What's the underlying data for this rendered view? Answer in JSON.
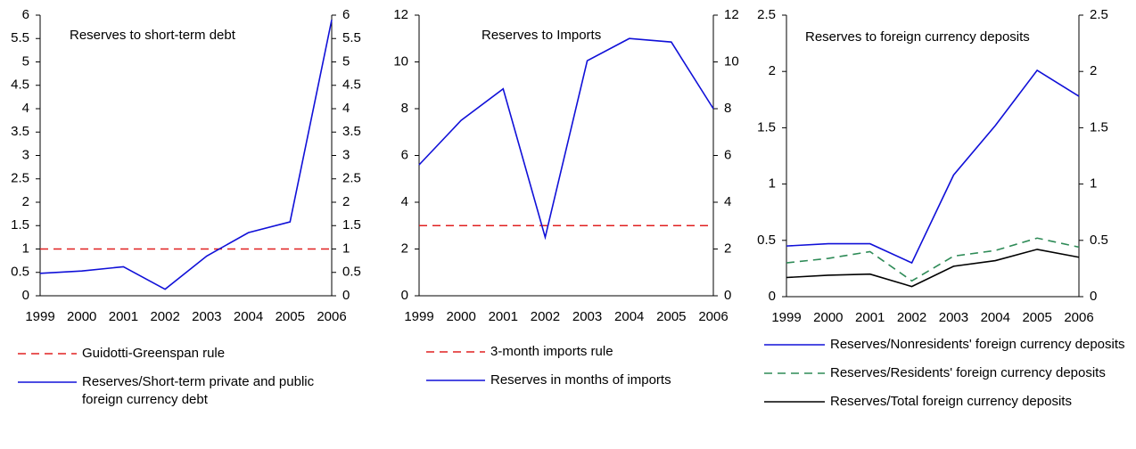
{
  "chart_data": [
    {
      "type": "line",
      "title": "Reserves to short-term debt",
      "categories": [
        "1999",
        "2000",
        "2001",
        "2002",
        "2003",
        "2004",
        "2005",
        "2006"
      ],
      "series": [
        {
          "name": "Guidotti-Greenspan rule",
          "color": "#e02020",
          "style": "dashed",
          "values": [
            1,
            1,
            1,
            1,
            1,
            1,
            1,
            1
          ]
        },
        {
          "name": "Reserves/Short-term private and public foreign currency debt",
          "color": "#1010d8",
          "style": "solid",
          "values": [
            0.48,
            0.53,
            0.62,
            0.14,
            0.85,
            1.35,
            1.58,
            5.9
          ]
        }
      ],
      "ylim": [
        0,
        6
      ],
      "yticks": [
        0,
        0.5,
        1,
        1.5,
        2,
        2.5,
        3,
        3.5,
        4,
        4.5,
        5,
        5.5,
        6
      ],
      "y2lim": [
        0,
        6
      ],
      "y2ticks": [
        0,
        0.5,
        1,
        1.5,
        2,
        2.5,
        3,
        3.5,
        4,
        4.5,
        5,
        5.5,
        6
      ]
    },
    {
      "type": "line",
      "title": "Reserves to Imports",
      "categories": [
        "1999",
        "2000",
        "2001",
        "2002",
        "2003",
        "2004",
        "2005",
        "2006"
      ],
      "series": [
        {
          "name": "3-month imports rule",
          "color": "#e02020",
          "style": "dashed",
          "values": [
            3,
            3,
            3,
            3,
            3,
            3,
            3,
            3
          ]
        },
        {
          "name": "Reserves in months of imports",
          "color": "#1010d8",
          "style": "solid",
          "values": [
            5.6,
            7.5,
            8.85,
            2.5,
            10.05,
            11.0,
            10.85,
            8.0
          ]
        }
      ],
      "ylim": [
        0,
        12
      ],
      "yticks": [
        0,
        2,
        4,
        6,
        8,
        10,
        12
      ],
      "y2lim": [
        0,
        12
      ],
      "y2ticks": [
        0,
        2,
        4,
        6,
        8,
        10,
        12
      ]
    },
    {
      "type": "line",
      "title": "Reserves to foreign currency deposits",
      "categories": [
        "1999",
        "2000",
        "2001",
        "2002",
        "2003",
        "2004",
        "2005",
        "2006"
      ],
      "series": [
        {
          "name": "Reserves/Nonresidents' foreign currency deposits",
          "color": "#1010d8",
          "style": "solid",
          "values": [
            0.45,
            0.47,
            0.47,
            0.3,
            1.08,
            1.52,
            2.01,
            1.78
          ]
        },
        {
          "name": "Reserves/Residents' foreign currency deposits",
          "color": "#2e8b57",
          "style": "dashed",
          "values": [
            0.3,
            0.34,
            0.4,
            0.14,
            0.36,
            0.41,
            0.52,
            0.44
          ]
        },
        {
          "name": "Reserves/Total foreign currency deposits",
          "color": "#000000",
          "style": "solid",
          "values": [
            0.17,
            0.19,
            0.2,
            0.09,
            0.27,
            0.32,
            0.42,
            0.35
          ]
        }
      ],
      "ylim": [
        0,
        2.5
      ],
      "yticks": [
        0,
        0.5,
        1,
        1.5,
        2,
        2.5
      ],
      "y2lim": [
        0,
        2.5
      ],
      "y2ticks": [
        0,
        0.5,
        1,
        1.5,
        2,
        2.5
      ]
    }
  ]
}
